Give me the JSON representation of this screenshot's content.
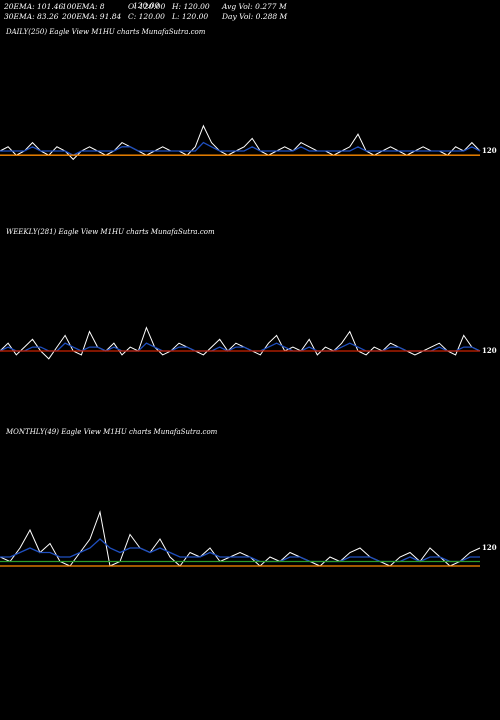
{
  "header": {
    "stats": [
      {
        "id": "ema20",
        "text": "20EMA: 101.46"
      },
      {
        "id": "ema100",
        "text": "100EMA: 8"
      },
      {
        "id": "open",
        "text": "O: 120.00"
      },
      {
        "id": "high",
        "text": "H: 120.00"
      },
      {
        "id": "avgvol",
        "text": "Avg Vol: 0.277 M"
      },
      {
        "id": "ema30",
        "text": "30EMA: 83.26"
      },
      {
        "id": "ema200",
        "text": "200EMA: 91.84"
      },
      {
        "id": "close",
        "text": "C: 120.00"
      },
      {
        "id": "low",
        "text": "L: 120.00"
      },
      {
        "id": "dayvol",
        "text": "Day Vol: 0.288 M"
      }
    ],
    "overlap_text": "120.00"
  },
  "panels": [
    {
      "id": "daily",
      "title": "DAILY(250) Eagle  View  M1HU charts MunafaSutra.com"
    },
    {
      "id": "weekly",
      "title": "WEEKLY(281) Eagle  View  M1HU charts MunafaSutra.com"
    },
    {
      "id": "monthly",
      "title": "MONTHLY(49) Eagle  View  M1HU charts MunafaSutra.com"
    }
  ],
  "colors": {
    "background": "#000000",
    "price": "#ffffff",
    "ema_blue": "#1f4fbf",
    "ema_orange": "#ff8c00",
    "ema_red": "#cc2200",
    "ema_green": "#2a9d2a"
  },
  "chart_data": [
    {
      "type": "line",
      "title": "DAILY(250) Eagle  View  M1HU charts MunafaSutra.com",
      "y_center": 120,
      "series": [
        {
          "role": "price",
          "color": "#ffffff",
          "values": [
            120,
            121,
            119,
            120,
            122,
            120,
            119,
            121,
            120,
            118,
            120,
            121,
            120,
            119,
            120,
            122,
            121,
            120,
            119,
            120,
            121,
            120,
            120,
            119,
            121,
            126,
            122,
            120,
            119,
            120,
            121,
            123,
            120,
            119,
            120,
            121,
            120,
            122,
            121,
            120,
            120,
            119,
            120,
            121,
            124,
            120,
            119,
            120,
            121,
            120,
            119,
            120,
            121,
            120,
            120,
            119,
            121,
            120,
            122,
            120
          ]
        },
        {
          "role": "ema",
          "color": "#1f4fbf",
          "values": [
            120,
            120,
            120,
            120,
            121,
            120,
            120,
            120,
            120,
            119,
            120,
            120,
            120,
            120,
            120,
            121,
            121,
            120,
            120,
            120,
            120,
            120,
            120,
            120,
            120,
            122,
            121,
            120,
            120,
            120,
            120,
            121,
            120,
            120,
            120,
            120,
            120,
            121,
            120,
            120,
            120,
            120,
            120,
            120,
            121,
            120,
            120,
            120,
            120,
            120,
            120,
            120,
            120,
            120,
            120,
            120,
            120,
            120,
            121,
            120
          ]
        },
        {
          "role": "ema",
          "color": "#ff8c00",
          "values": [
            119,
            119,
            119,
            119,
            119,
            119,
            119,
            119,
            119,
            119,
            119,
            119,
            119,
            119,
            119,
            119,
            119,
            119,
            119,
            119,
            119,
            119,
            119,
            119,
            119,
            119,
            119,
            119,
            119,
            119,
            119,
            119,
            119,
            119,
            119,
            119,
            119,
            119,
            119,
            119,
            119,
            119,
            119,
            119,
            119,
            119,
            119,
            119,
            119,
            119,
            119,
            119,
            119,
            119,
            119,
            119,
            119,
            119,
            119,
            119
          ]
        }
      ],
      "end_label": "120"
    },
    {
      "type": "line",
      "title": "WEEKLY(281) Eagle  View  M1HU charts MunafaSutra.com",
      "y_center": 120,
      "series": [
        {
          "role": "price",
          "color": "#ffffff",
          "values": [
            120,
            122,
            119,
            121,
            123,
            120,
            118,
            121,
            124,
            120,
            119,
            125,
            121,
            120,
            122,
            119,
            121,
            120,
            126,
            121,
            119,
            120,
            122,
            121,
            120,
            119,
            121,
            123,
            120,
            122,
            121,
            120,
            119,
            122,
            124,
            120,
            121,
            120,
            123,
            119,
            121,
            120,
            122,
            125,
            120,
            119,
            121,
            120,
            122,
            121,
            120,
            119,
            120,
            121,
            122,
            120,
            119,
            124,
            121,
            120
          ]
        },
        {
          "role": "ema",
          "color": "#1f4fbf",
          "values": [
            120,
            121,
            120,
            120,
            121,
            121,
            120,
            120,
            122,
            121,
            120,
            121,
            121,
            120,
            121,
            120,
            120,
            120,
            122,
            121,
            120,
            120,
            121,
            121,
            120,
            120,
            120,
            121,
            120,
            121,
            121,
            120,
            120,
            121,
            122,
            121,
            120,
            120,
            121,
            120,
            120,
            120,
            121,
            122,
            121,
            120,
            120,
            120,
            121,
            121,
            120,
            120,
            120,
            120,
            121,
            120,
            120,
            121,
            121,
            120
          ]
        },
        {
          "role": "ema",
          "color": "#cc2200",
          "values": [
            120,
            120,
            120,
            120,
            120,
            120,
            120,
            120,
            120,
            120,
            120,
            120,
            120,
            120,
            120,
            120,
            120,
            120,
            120,
            120,
            120,
            120,
            120,
            120,
            120,
            120,
            120,
            120,
            120,
            120,
            120,
            120,
            120,
            120,
            120,
            120,
            120,
            120,
            120,
            120,
            120,
            120,
            120,
            120,
            120,
            120,
            120,
            120,
            120,
            120,
            120,
            120,
            120,
            120,
            120,
            120,
            120,
            120,
            120,
            120
          ]
        }
      ],
      "end_label": "120"
    },
    {
      "type": "line",
      "title": "MONTHLY(49) Eagle  View  M1HU charts MunafaSutra.com",
      "y_center": 120,
      "series": [
        {
          "role": "price",
          "color": "#ffffff",
          "values": [
            120,
            119,
            122,
            126,
            121,
            123,
            119,
            118,
            121,
            124,
            130,
            118,
            119,
            125,
            122,
            121,
            124,
            120,
            118,
            121,
            120,
            122,
            119,
            120,
            121,
            120,
            118,
            120,
            119,
            121,
            120,
            119,
            118,
            120,
            119,
            121,
            122,
            120,
            119,
            118,
            120,
            121,
            119,
            122,
            120,
            118,
            119,
            121,
            122
          ]
        },
        {
          "role": "ema",
          "color": "#1f4fbf",
          "values": [
            120,
            120,
            121,
            122,
            121,
            121,
            120,
            120,
            121,
            122,
            124,
            122,
            121,
            122,
            122,
            121,
            122,
            121,
            120,
            120,
            120,
            121,
            120,
            120,
            120,
            120,
            119,
            119,
            119,
            120,
            120,
            119,
            119,
            119,
            119,
            120,
            120,
            120,
            119,
            119,
            119,
            120,
            119,
            120,
            120,
            119,
            119,
            120,
            120
          ]
        },
        {
          "role": "ema",
          "color": "#2a9d2a",
          "values": [
            119,
            119,
            119,
            119,
            119,
            119,
            119,
            119,
            119,
            119,
            119,
            119,
            119,
            119,
            119,
            119,
            119,
            119,
            119,
            119,
            119,
            119,
            119,
            119,
            119,
            119,
            119,
            119,
            119,
            119,
            119,
            119,
            119,
            119,
            119,
            119,
            119,
            119,
            119,
            119,
            119,
            119,
            119,
            119,
            119,
            119,
            119,
            119,
            119
          ]
        },
        {
          "role": "ema",
          "color": "#ff8c00",
          "values": [
            118,
            118,
            118,
            118,
            118,
            118,
            118,
            118,
            118,
            118,
            118,
            118,
            118,
            118,
            118,
            118,
            118,
            118,
            118,
            118,
            118,
            118,
            118,
            118,
            118,
            118,
            118,
            118,
            118,
            118,
            118,
            118,
            118,
            118,
            118,
            118,
            118,
            118,
            118,
            118,
            118,
            118,
            118,
            118,
            118,
            118,
            118,
            118,
            118
          ]
        }
      ],
      "end_label": "120"
    }
  ]
}
